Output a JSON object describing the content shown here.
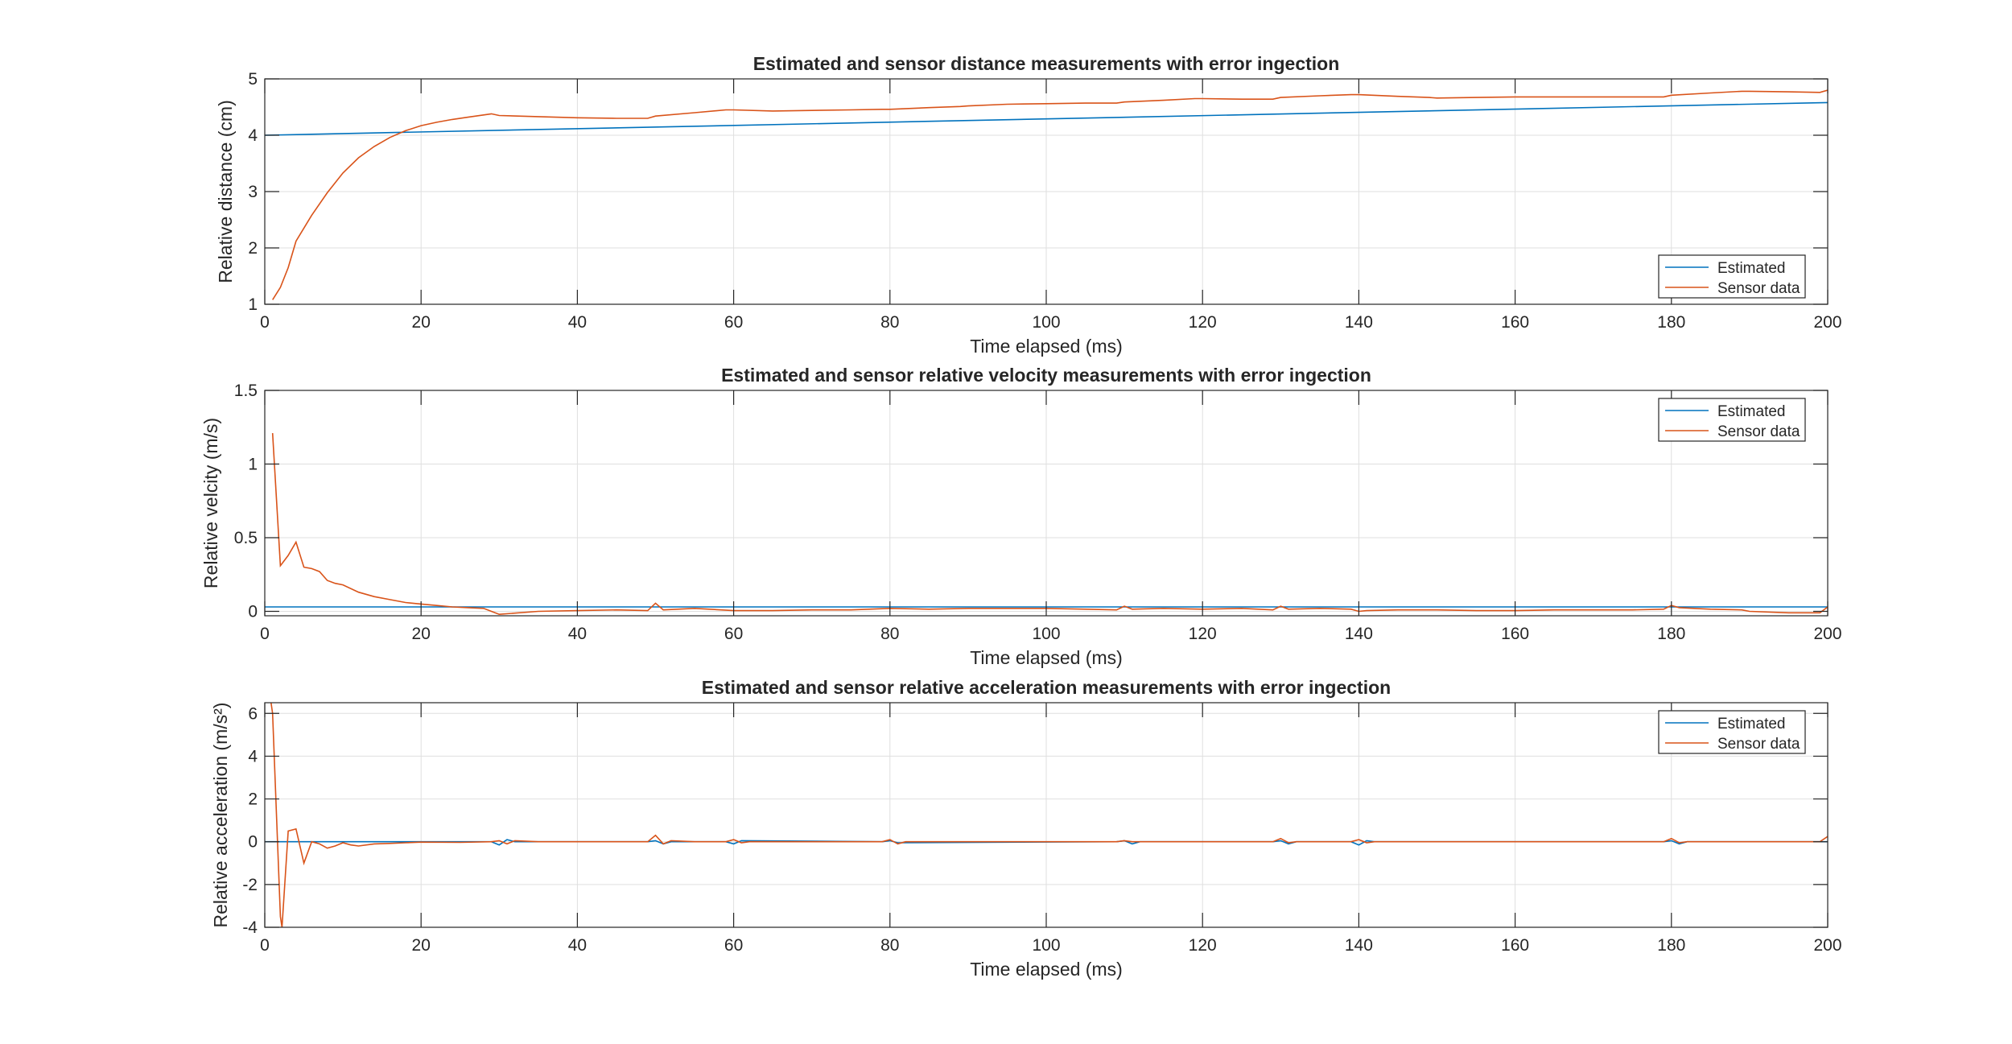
{
  "colors": {
    "estimated": "#0072BD",
    "sensor": "#D95319",
    "grid": "#DFDFDF",
    "axis": "#262626"
  },
  "chart_data": [
    {
      "type": "line",
      "title": "Estimated and sensor distance measurements with error ingection",
      "xlabel": "Time elapsed (ms)",
      "ylabel": "Relative distance (cm)",
      "xlim": [
        0,
        200
      ],
      "ylim": [
        1,
        5
      ],
      "xticks": [
        0,
        20,
        40,
        60,
        80,
        100,
        120,
        140,
        160,
        180,
        200
      ],
      "yticks": [
        1,
        2,
        3,
        4,
        5
      ],
      "grid": true,
      "legend_position": "bottom-right",
      "series": [
        {
          "name": "Estimated",
          "x": [
            0,
            200
          ],
          "y": [
            4.0,
            4.58
          ]
        },
        {
          "name": "Sensor data",
          "x": [
            1,
            2,
            3,
            4,
            6,
            8,
            10,
            12,
            14,
            16,
            18,
            20,
            22,
            24,
            26,
            28,
            29,
            30,
            35,
            40,
            45,
            49,
            50,
            55,
            59,
            60,
            65,
            70,
            75,
            79,
            80,
            85,
            89,
            90,
            95,
            100,
            105,
            109,
            110,
            115,
            119,
            120,
            125,
            129,
            130,
            135,
            139,
            140,
            145,
            149,
            150,
            155,
            160,
            165,
            170,
            175,
            179,
            180,
            185,
            189,
            190,
            195,
            199,
            200
          ],
          "y": [
            1.08,
            1.3,
            1.65,
            2.12,
            2.58,
            2.98,
            3.33,
            3.6,
            3.8,
            3.96,
            4.08,
            4.17,
            4.23,
            4.28,
            4.32,
            4.36,
            4.38,
            4.35,
            4.33,
            4.31,
            4.3,
            4.3,
            4.34,
            4.4,
            4.45,
            4.45,
            4.43,
            4.44,
            4.45,
            4.46,
            4.46,
            4.49,
            4.51,
            4.52,
            4.55,
            4.56,
            4.57,
            4.57,
            4.59,
            4.62,
            4.65,
            4.65,
            4.64,
            4.64,
            4.67,
            4.7,
            4.72,
            4.72,
            4.69,
            4.67,
            4.66,
            4.67,
            4.68,
            4.68,
            4.68,
            4.68,
            4.68,
            4.71,
            4.75,
            4.78,
            4.78,
            4.77,
            4.76,
            4.8
          ]
        }
      ]
    },
    {
      "type": "line",
      "title": "Estimated and sensor relative velocity measurements with error ingection",
      "xlabel": "Time elapsed (ms)",
      "ylabel": "Relative velcity (m/s)",
      "xlim": [
        0,
        200
      ],
      "ylim": [
        -0.03,
        1.5
      ],
      "xticks": [
        0,
        20,
        40,
        60,
        80,
        100,
        120,
        140,
        160,
        180,
        200
      ],
      "yticks": [
        0,
        0.5,
        1,
        1.5
      ],
      "ytick_labels": [
        "0",
        "0.5",
        "1",
        "1.5"
      ],
      "grid": true,
      "legend_position": "top-right",
      "series": [
        {
          "name": "Estimated",
          "x": [
            0,
            200
          ],
          "y": [
            0.03,
            0.03
          ]
        },
        {
          "name": "Sensor data",
          "x": [
            1,
            2,
            3,
            4,
            5,
            6,
            7,
            8,
            9,
            10,
            12,
            14,
            16,
            18,
            20,
            22,
            24,
            26,
            28,
            29,
            30,
            35,
            40,
            45,
            49,
            50,
            51,
            55,
            60,
            65,
            70,
            75,
            80,
            85,
            90,
            95,
            100,
            105,
            109,
            110,
            111,
            115,
            120,
            125,
            129,
            130,
            131,
            135,
            139,
            140,
            141,
            145,
            150,
            155,
            160,
            165,
            170,
            175,
            179,
            180,
            181,
            185,
            189,
            190,
            195,
            199,
            200
          ],
          "y": [
            1.21,
            0.31,
            0.38,
            0.47,
            0.3,
            0.29,
            0.27,
            0.21,
            0.19,
            0.18,
            0.13,
            0.1,
            0.08,
            0.06,
            0.05,
            0.04,
            0.03,
            0.025,
            0.02,
            0.0,
            -0.02,
            0.0,
            0.005,
            0.01,
            0.005,
            0.055,
            0.01,
            0.02,
            0.005,
            0.005,
            0.01,
            0.01,
            0.02,
            0.015,
            0.02,
            0.02,
            0.02,
            0.015,
            0.01,
            0.035,
            0.015,
            0.02,
            0.015,
            0.02,
            0.01,
            0.035,
            0.015,
            0.02,
            0.015,
            0.0,
            0.005,
            0.01,
            0.01,
            0.005,
            0.005,
            0.01,
            0.01,
            0.01,
            0.015,
            0.04,
            0.025,
            0.015,
            0.01,
            0.0,
            -0.01,
            -0.01,
            0.03
          ]
        }
      ]
    },
    {
      "type": "line",
      "title": "Estimated and sensor relative acceleration measurements with error ingection",
      "xlabel": "Time elapsed (ms)",
      "ylabel": "Relative acceleration (m/s²)",
      "xlim": [
        0,
        200
      ],
      "ylim": [
        -4,
        6.5
      ],
      "xticks": [
        0,
        20,
        40,
        60,
        80,
        100,
        120,
        140,
        160,
        180,
        200
      ],
      "yticks": [
        -4,
        -2,
        0,
        2,
        4,
        6
      ],
      "grid": true,
      "legend_position": "top-right",
      "series": [
        {
          "name": "Estimated",
          "x": [
            0,
            5,
            6,
            10,
            20,
            29,
            30,
            31,
            32,
            49,
            50,
            51,
            52,
            59,
            60,
            61,
            79,
            80,
            81,
            109,
            110,
            111,
            112,
            129,
            130,
            131,
            132,
            139,
            140,
            141,
            142,
            179,
            180,
            181,
            182,
            200
          ],
          "y": [
            0,
            0,
            0,
            0,
            0,
            0,
            -0.15,
            0.1,
            0,
            0,
            0.05,
            -0.1,
            0,
            0,
            -0.1,
            0.05,
            0,
            0.05,
            -0.05,
            0,
            0.05,
            -0.1,
            0,
            0,
            0.05,
            -0.1,
            0,
            0,
            -0.15,
            0.05,
            0,
            0,
            0.05,
            -0.1,
            0,
            0
          ]
        },
        {
          "name": "Sensor data",
          "x": [
            0.8,
            1,
            2,
            2.2,
            3,
            4,
            5,
            6,
            7,
            8,
            9,
            10,
            11,
            12,
            14,
            16,
            18,
            20,
            25,
            29,
            30,
            31,
            32,
            35,
            40,
            49,
            50,
            51,
            52,
            55,
            59,
            60,
            61,
            62,
            70,
            79,
            80,
            81,
            82,
            90,
            100,
            109,
            110,
            111,
            112,
            120,
            129,
            130,
            131,
            132,
            139,
            140,
            141,
            142,
            150,
            160,
            170,
            179,
            180,
            181,
            182,
            190,
            199,
            200
          ],
          "y": [
            6.5,
            6.0,
            -3.5,
            -4.0,
            0.5,
            0.6,
            -1.0,
            0.0,
            -0.1,
            -0.3,
            -0.2,
            -0.05,
            -0.15,
            -0.2,
            -0.1,
            -0.08,
            -0.05,
            -0.02,
            -0.03,
            0.0,
            0.05,
            -0.1,
            0.05,
            0.0,
            0.0,
            0.0,
            0.3,
            -0.1,
            0.05,
            0.0,
            0.0,
            0.1,
            -0.05,
            0.0,
            0.0,
            0.0,
            0.1,
            -0.1,
            0.0,
            0.0,
            0.0,
            0.0,
            0.05,
            0.0,
            0.0,
            0.0,
            0.0,
            0.15,
            -0.05,
            0.0,
            0.0,
            0.1,
            -0.05,
            0.0,
            0.0,
            0.0,
            0.0,
            0.0,
            0.15,
            -0.05,
            0.0,
            0.0,
            0.0,
            0.25
          ]
        }
      ]
    }
  ]
}
